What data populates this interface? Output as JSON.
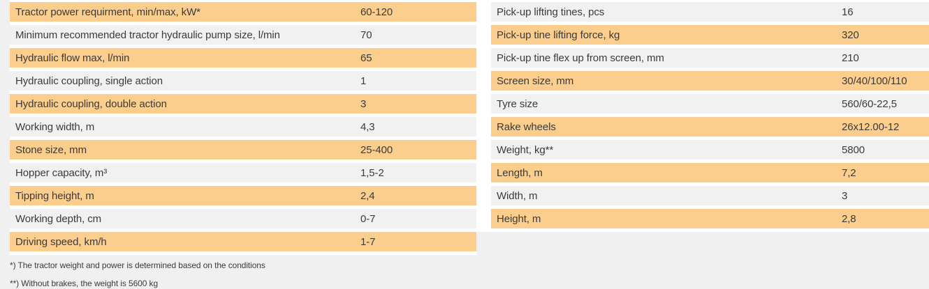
{
  "colors": {
    "highlight_row": "#fbce8d",
    "alt_row": "#f1f1f2",
    "page_background": "#f0f0f1",
    "text": "#3b3b3b"
  },
  "spec_tables": {
    "left": {
      "rows": [
        {
          "label": "Tractor power requirment, min/max, kW*",
          "value": "60-120"
        },
        {
          "label": "Minimum recommended tractor hydraulic pump size, l/min",
          "value": "70"
        },
        {
          "label": "Hydraulic flow max, l/min",
          "value": "65"
        },
        {
          "label": "Hydraulic coupling, single action",
          "value": "1"
        },
        {
          "label": "Hydraulic coupling, double action",
          "value": "3"
        },
        {
          "label": "Working width, m",
          "value": "4,3"
        },
        {
          "label": "Stone size, mm",
          "value": "25-400"
        },
        {
          "label": "Hopper capacity, m³",
          "value": "1,5-2"
        },
        {
          "label": "Tipping height, m",
          "value": "2,4"
        },
        {
          "label": "Working depth, cm",
          "value": "0-7"
        },
        {
          "label": "Driving speed, km/h",
          "value": "1-7"
        }
      ]
    },
    "right": {
      "rows": [
        {
          "label": "Pick-up lifting tines, pcs",
          "value": "16"
        },
        {
          "label": "Pick-up tine lifting force, kg",
          "value": "320"
        },
        {
          "label": "Pick-up tine flex up from screen, mm",
          "value": "210"
        },
        {
          "label": "Screen size, mm",
          "value": "30/40/100/110"
        },
        {
          "label": "Tyre size",
          "value": "560/60-22,5"
        },
        {
          "label": "Rake wheels",
          "value": "26x12.00-12"
        },
        {
          "label": "Weight, kg**",
          "value": "5800"
        },
        {
          "label": "Length, m",
          "value": "7,2"
        },
        {
          "label": "Width, m",
          "value": "3"
        },
        {
          "label": "Height, m",
          "value": "2,8"
        }
      ]
    }
  },
  "footnotes": [
    "*) The tractor weight and power is determined based on the conditions",
    "**) Without brakes, the weight is 5600 kg"
  ]
}
